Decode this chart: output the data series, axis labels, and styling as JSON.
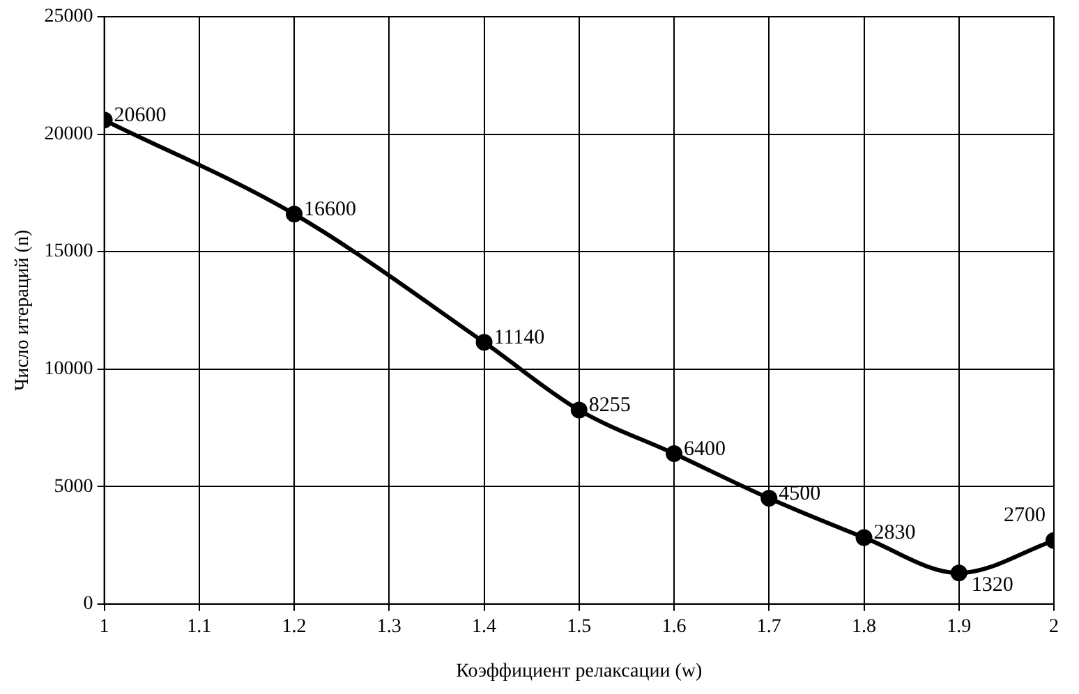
{
  "chart_data": {
    "type": "line",
    "xlabel": "Коэффициент релаксации (w)",
    "ylabel": "Число итераций (n)",
    "x": [
      1,
      1.2,
      1.4,
      1.5,
      1.6,
      1.7,
      1.8,
      1.9,
      2
    ],
    "series": [
      {
        "color": "#000000",
        "values": [
          20600,
          16600,
          11140,
          8255,
          6400,
          4500,
          2830,
          1320,
          2700
        ]
      }
    ],
    "xlim": [
      1,
      2
    ],
    "xticks": [
      1,
      1.1,
      1.2,
      1.3,
      1.4,
      1.5,
      1.6,
      1.7,
      1.8,
      1.9,
      2
    ],
    "ylim": [
      0,
      25000
    ],
    "yticks": [
      0,
      5000,
      10000,
      15000,
      20000,
      25000
    ],
    "grid": true,
    "legend": false,
    "marker": "circle",
    "line_style": "solid",
    "data_labels": true
  }
}
